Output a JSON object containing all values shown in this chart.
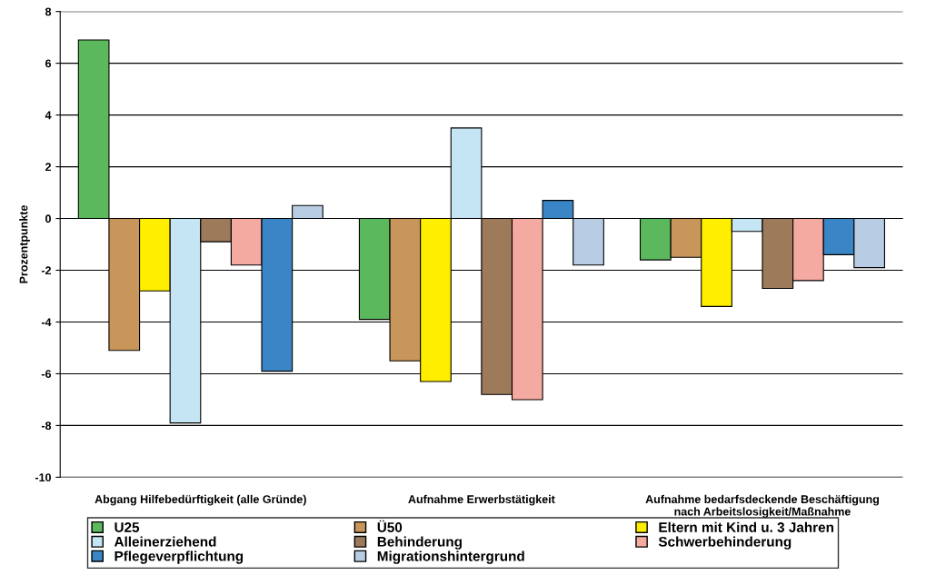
{
  "chart_data": {
    "type": "bar",
    "ylabel": "Prozentpunkte",
    "categories": [
      "Abgang Hilfebedürftigkeit (alle Gründe)",
      "Aufnahme Erwerbstätigkeit",
      "Aufnahme bedarfsdeckende Beschäftigung\nnach Arbeitslosigkeit/Maßnahme"
    ],
    "series": [
      {
        "name": "U25",
        "color": "#5cb85c",
        "values": [
          6.9,
          -3.9,
          -1.6
        ]
      },
      {
        "name": "Ü50",
        "color": "#c8965a",
        "values": [
          -5.1,
          -5.5,
          -1.5
        ]
      },
      {
        "name": "Eltern mit Kind u. 3 Jahren",
        "color": "#ffee00",
        "values": [
          -2.8,
          -6.3,
          -3.4
        ]
      },
      {
        "name": "Alleinerziehend",
        "color": "#c5e5f5",
        "values": [
          -7.9,
          3.5,
          -0.5
        ]
      },
      {
        "name": "Behinderung",
        "color": "#9c7a5a",
        "values": [
          -0.9,
          -6.8,
          -2.7
        ]
      },
      {
        "name": "Schwerbehinderung",
        "color": "#f4aaa0",
        "values": [
          -1.8,
          -7.0,
          -2.4
        ]
      },
      {
        "name": "Pflegeverpflichtung",
        "color": "#3a85c6",
        "values": [
          -5.9,
          0.7,
          -1.4
        ]
      },
      {
        "name": "Migrationshintergrund",
        "color": "#b8cce4",
        "values": [
          0.5,
          -1.8,
          -1.9
        ]
      }
    ],
    "ylim": [
      -10,
      8
    ],
    "yticks": [
      -10,
      -8,
      -6,
      -4,
      -2,
      0,
      2,
      4,
      6,
      8
    ],
    "grid": "y",
    "legend": "bottom"
  }
}
